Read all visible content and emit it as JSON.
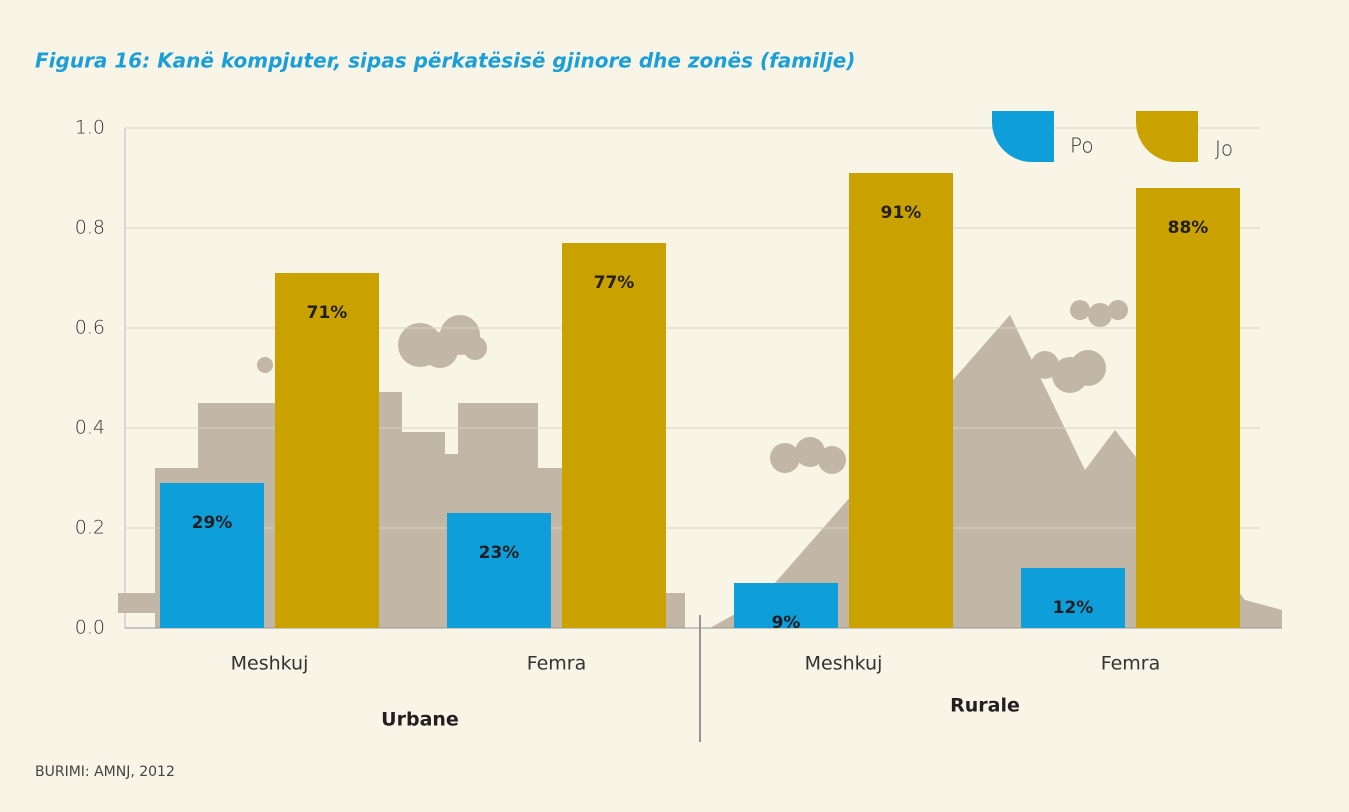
{
  "chart_data": {
    "type": "bar",
    "title": "Figura 16: Kanë kompjuter, sipas përkatësisë gjinore dhe zonës (familje)",
    "categories": [
      "Meshkuj",
      "Femra",
      "Meshkuj",
      "Femra"
    ],
    "groups": [
      "Urbane",
      "Rurale"
    ],
    "series": [
      {
        "name": "Po",
        "color": "#0e9fdb",
        "values": [
          0.29,
          0.23,
          0.09,
          0.12
        ],
        "value_labels": [
          "29%",
          "23%",
          "9%",
          "12%"
        ]
      },
      {
        "name": "Jo",
        "color": "#c9a200",
        "values": [
          0.71,
          0.77,
          0.91,
          0.88
        ],
        "value_labels": [
          "71%",
          "77%",
          "91%",
          "88%"
        ]
      }
    ],
    "ylim": [
      0,
      1
    ],
    "yticks": [
      {
        "value": 0,
        "label": "0.0"
      },
      0.2,
      0.4,
      0.6,
      0.8,
      {
        "value": 1,
        "label": "1.0"
      }
    ],
    "grid": true,
    "source": "BURIMI: AMNJ, 2012"
  }
}
